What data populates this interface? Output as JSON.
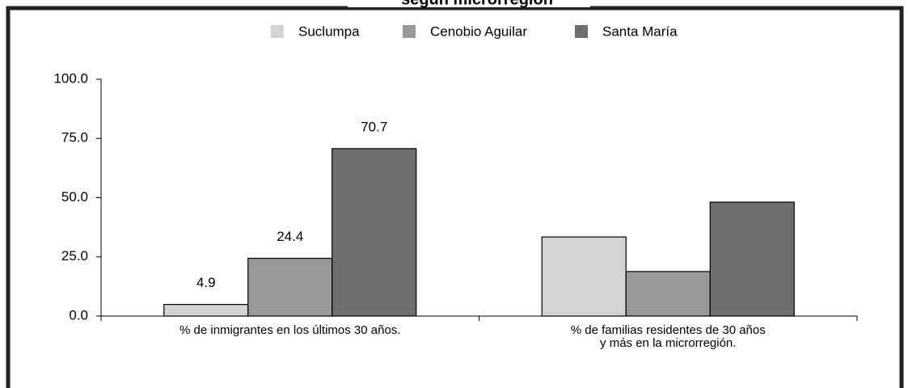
{
  "chart_data": {
    "type": "bar",
    "title": "según microrregión",
    "categories": [
      "% de inmigrantes en los últimos 30 años.",
      "% de familias residentes de 30 años\ny más en la microrregión."
    ],
    "series": [
      {
        "name": "Suclumpa",
        "color": "#d3d3d3",
        "values": [
          4.9,
          33.4
        ]
      },
      {
        "name": "Cenobio Aguilar",
        "color": "#999999",
        "values": [
          24.4,
          18.8
        ]
      },
      {
        "name": "Santa María",
        "color": "#6f6f6f",
        "values": [
          70.7,
          48.1
        ]
      }
    ],
    "data_labels": [
      true,
      false
    ],
    "ylim": [
      0,
      100
    ],
    "yticks": [
      {
        "value": 0,
        "label": "0.0"
      },
      {
        "value": 25,
        "label": "25.0"
      },
      {
        "value": 50,
        "label": "50.0"
      },
      {
        "value": 75,
        "label": "75.0"
      },
      {
        "value": 100,
        "label": "100.0"
      }
    ],
    "legend": "top"
  }
}
